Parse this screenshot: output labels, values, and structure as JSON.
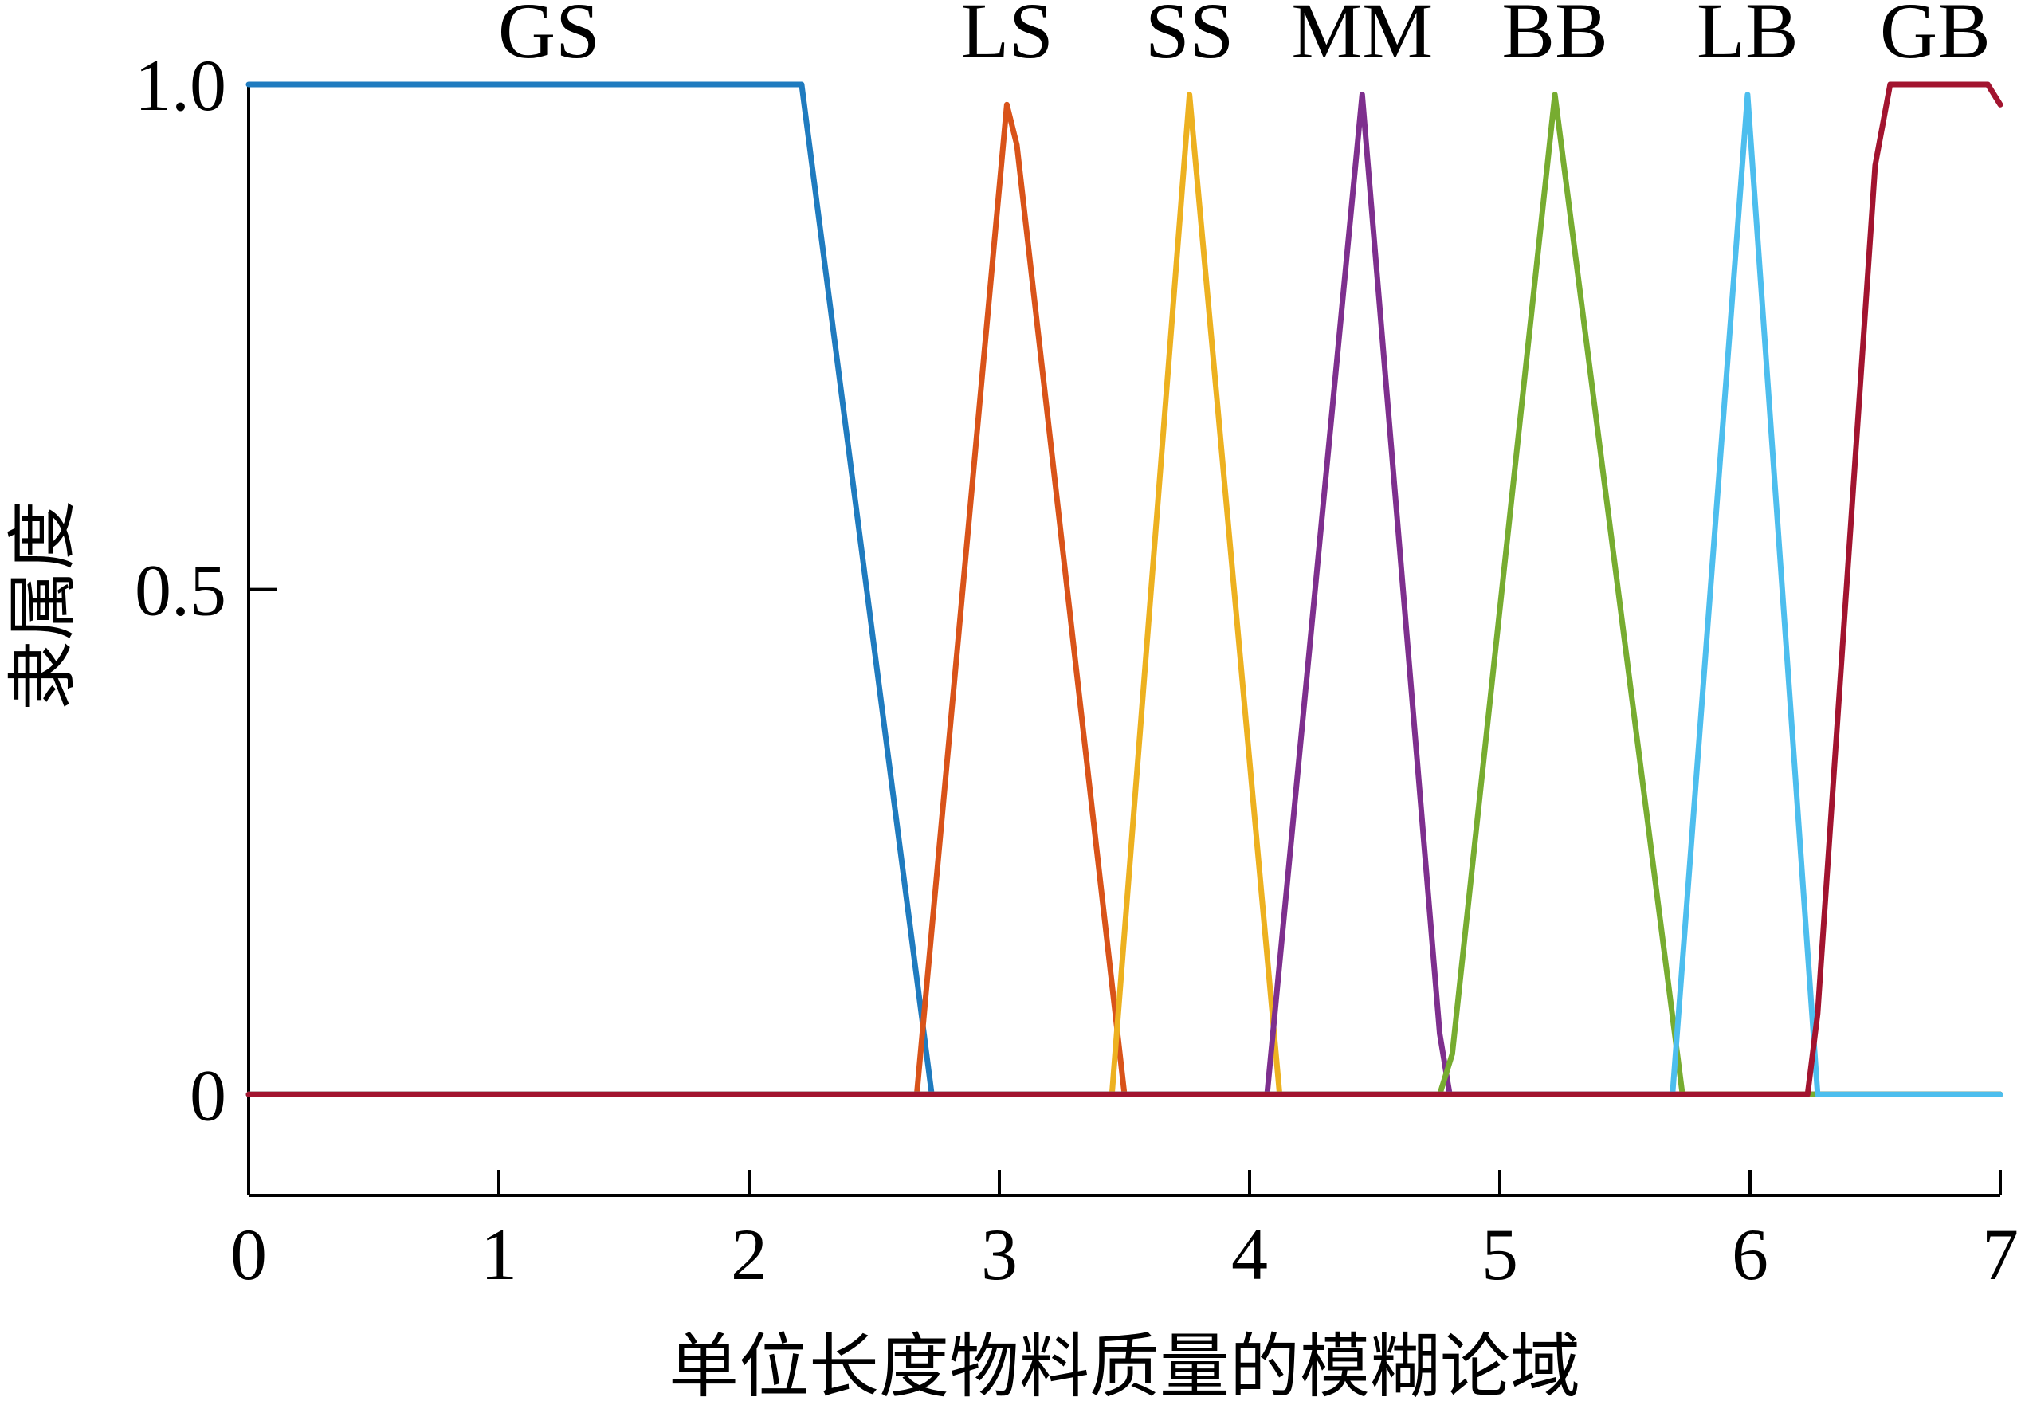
{
  "chart_data": {
    "type": "line",
    "title": "",
    "xlabel": "单位长度物料质量的模糊论域",
    "ylabel": "隶属度",
    "xlim": [
      0,
      7
    ],
    "ylim": [
      -0.1,
      1.0
    ],
    "x_ticks": [
      0,
      1,
      2,
      3,
      4,
      5,
      6,
      7
    ],
    "x_tick_labels": [
      "0",
      "1",
      "2",
      "3",
      "4",
      "5",
      "6",
      "7"
    ],
    "y_ticks": [
      0,
      0.5,
      1.0
    ],
    "y_tick_labels": [
      "0",
      "0.5",
      "1.0"
    ],
    "grid": false,
    "legend": "series labels placed above each membership peak",
    "series": [
      {
        "name": "GS",
        "color": "#1f7bbf",
        "label_x": 1.2,
        "x": [
          0,
          2.21,
          2.73,
          7
        ],
        "y": [
          1,
          1,
          0,
          0
        ]
      },
      {
        "name": "LS",
        "color": "#d95319",
        "label_x": 3.03,
        "x": [
          0,
          2.67,
          3.03,
          3.07,
          3.5,
          7
        ],
        "y": [
          0,
          0,
          0.98,
          0.94,
          0,
          0
        ]
      },
      {
        "name": "SS",
        "color": "#edb120",
        "label_x": 3.76,
        "x": [
          0,
          3.45,
          3.76,
          4.12,
          7
        ],
        "y": [
          0,
          0,
          0.99,
          0,
          0
        ]
      },
      {
        "name": "MM",
        "color": "#7e2f8e",
        "label_x": 4.45,
        "x": [
          0,
          4.07,
          4.45,
          4.76,
          4.8,
          7
        ],
        "y": [
          0,
          0,
          0.99,
          0.06,
          0,
          0
        ]
      },
      {
        "name": "BB",
        "color": "#77ac30",
        "label_x": 5.22,
        "x": [
          0,
          4.76,
          4.81,
          5.22,
          5.73,
          7
        ],
        "y": [
          0,
          0,
          0.04,
          0.99,
          0,
          0
        ]
      },
      {
        "name": "LB",
        "color": "#4dbeee",
        "label_x": 5.99,
        "x": [
          0,
          5.69,
          5.99,
          6.27,
          7
        ],
        "y": [
          0,
          0,
          0.99,
          0,
          0
        ]
      },
      {
        "name": "GB",
        "color": "#a2142f",
        "label_x": 6.74,
        "x": [
          0,
          6.23,
          6.27,
          6.5,
          6.56,
          6.95,
          7
        ],
        "y": [
          0,
          0,
          0.08,
          0.92,
          1,
          1,
          0.98
        ]
      }
    ]
  }
}
